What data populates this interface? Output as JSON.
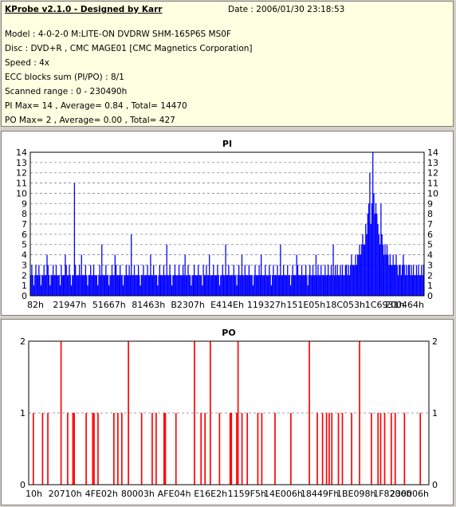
{
  "info": {
    "title": "KProbe v2.1.0 - Designed by Karr",
    "date": "Date : 2006/01/30 23:18:53",
    "lines": [
      "Model : 4-0-2-0 M:LITE-ON DVDRW SHM-165P6S MS0F",
      "Disc : DVD+R , CMC MAGE01 [CMC Magnetics Corporation]",
      "Speed : 4x",
      "ECC blocks sum (PI/PO) : 8/1",
      "Scanned range : 0 - 230490h",
      "PI Max= 14 , Average= 0.84 , Total= 14470",
      "PO Max= 2 , Average= 0.00 , Total= 427"
    ]
  },
  "chart_data": [
    {
      "type": "bar",
      "title": "PI",
      "color": "#0000ff",
      "ylim": [
        0,
        14
      ],
      "yticks": [
        0,
        1,
        2,
        3,
        4,
        5,
        6,
        7,
        8,
        9,
        10,
        11,
        12,
        13,
        14
      ],
      "xlim": [
        0,
        230490
      ],
      "xtick_labels": [
        "82h",
        "21947h",
        "51667h",
        "81463h",
        "B2307h",
        "E414Eh",
        "119327h",
        "151E05h",
        "18C053h",
        "1C6931h",
        "200464h"
      ],
      "grid": "dashed",
      "values": [
        2,
        3,
        2,
        1,
        2,
        3,
        2,
        2,
        3,
        2,
        1,
        2,
        2,
        3,
        2,
        2,
        4,
        3,
        2,
        1,
        2,
        2,
        3,
        2,
        2,
        3,
        2,
        2,
        2,
        1,
        3,
        2,
        2,
        2,
        4,
        3,
        2,
        2,
        3,
        2,
        1,
        2,
        2,
        11,
        3,
        2,
        2,
        2,
        3,
        2,
        4,
        2,
        2,
        2,
        3,
        2,
        1,
        2,
        2,
        3,
        2,
        2,
        3,
        2,
        2,
        2,
        1,
        2,
        3,
        2,
        5,
        2,
        2,
        2,
        3,
        2,
        2,
        1,
        2,
        2,
        3,
        2,
        2,
        4,
        3,
        2,
        2,
        2,
        3,
        2,
        2,
        1,
        2,
        2,
        3,
        2,
        2,
        3,
        2,
        6,
        2,
        2,
        3,
        2,
        2,
        2,
        3,
        2,
        1,
        2,
        2,
        3,
        2,
        2,
        2,
        3,
        2,
        2,
        4,
        2,
        2,
        3,
        2,
        2,
        2,
        1,
        2,
        3,
        2,
        2,
        2,
        3,
        2,
        2,
        5,
        2,
        2,
        3,
        2,
        1,
        2,
        2,
        3,
        2,
        2,
        2,
        3,
        2,
        2,
        2,
        3,
        2,
        4,
        2,
        2,
        3,
        2,
        2,
        1,
        2,
        2,
        3,
        2,
        2,
        2,
        3,
        2,
        2,
        2,
        1,
        3,
        2,
        2,
        3,
        2,
        2,
        4,
        2,
        2,
        2,
        3,
        2,
        2,
        2,
        3,
        2,
        1,
        2,
        2,
        3,
        2,
        2,
        5,
        2,
        2,
        3,
        2,
        2,
        2,
        2,
        3,
        2,
        2,
        1,
        2,
        3,
        2,
        2,
        4,
        2,
        2,
        3,
        2,
        2,
        2,
        3,
        2,
        2,
        2,
        1,
        2,
        3,
        2,
        2,
        2,
        3,
        2,
        4,
        2,
        2,
        2,
        3,
        2,
        2,
        2,
        3,
        2,
        1,
        2,
        3,
        2,
        2,
        2,
        3,
        2,
        2,
        5,
        2,
        2,
        3,
        2,
        2,
        2,
        3,
        2,
        2,
        1,
        2,
        3,
        2,
        2,
        2,
        4,
        3,
        2,
        2,
        2,
        3,
        2,
        2,
        2,
        3,
        2,
        1,
        2,
        3,
        2,
        2,
        3,
        2,
        2,
        4,
        2,
        3,
        2,
        2,
        3,
        2,
        2,
        2,
        3,
        2,
        2,
        3,
        2,
        2,
        3,
        2,
        5,
        2,
        3,
        2,
        3,
        2,
        2,
        3,
        2,
        3,
        2,
        2,
        3,
        3,
        2,
        3,
        2,
        3,
        4,
        3,
        3,
        3,
        4,
        3,
        4,
        4,
        5,
        4,
        5,
        6,
        5,
        5,
        7,
        6,
        8,
        9,
        12,
        7,
        9,
        14,
        10,
        8,
        9,
        8,
        7,
        6,
        5,
        9,
        6,
        5,
        4,
        5,
        4,
        5,
        4,
        3,
        4,
        3,
        3,
        4,
        3,
        3,
        4,
        3,
        2,
        3,
        3,
        2,
        3,
        4,
        3,
        2,
        3,
        2,
        3,
        3,
        2,
        3,
        2,
        3,
        2,
        2,
        3,
        2,
        3,
        2,
        2,
        3,
        2,
        3
      ]
    },
    {
      "type": "bar",
      "title": "PO",
      "color": "#ff0000",
      "ylim": [
        0,
        2
      ],
      "yticks": [
        0,
        1,
        2
      ],
      "xlim": [
        0,
        230490
      ],
      "xtick_labels": [
        "10h",
        "20710h",
        "4FE02h",
        "80003h",
        "AFE04h",
        "E16E2h",
        "1159F5h",
        "14E006h",
        "18449Fh",
        "1BE098h",
        "1F8206h",
        "230006h"
      ],
      "grid": "dashed",
      "values": [
        0,
        0,
        0,
        1,
        0,
        0,
        0,
        0,
        0,
        0,
        1,
        0,
        0,
        0,
        1,
        0,
        0,
        0,
        0,
        0,
        0,
        0,
        0,
        0,
        2,
        0,
        0,
        0,
        0,
        1,
        0,
        0,
        0,
        1,
        1,
        0,
        0,
        0,
        0,
        0,
        0,
        0,
        0,
        1,
        0,
        0,
        0,
        0,
        1,
        1,
        0,
        0,
        1,
        0,
        0,
        0,
        0,
        0,
        0,
        0,
        0,
        0,
        0,
        0,
        1,
        0,
        0,
        1,
        0,
        0,
        1,
        0,
        0,
        0,
        0,
        2,
        0,
        0,
        0,
        0,
        0,
        0,
        0,
        0,
        0,
        1,
        0,
        0,
        0,
        0,
        0,
        0,
        0,
        1,
        0,
        0,
        1,
        0,
        0,
        0,
        0,
        0,
        1,
        1,
        0,
        0,
        0,
        0,
        0,
        0,
        0,
        1,
        0,
        0,
        0,
        0,
        0,
        0,
        0,
        0,
        0,
        0,
        0,
        0,
        0,
        2,
        0,
        0,
        0,
        0,
        1,
        0,
        0,
        1,
        0,
        0,
        0,
        2,
        0,
        0,
        0,
        0,
        0,
        0,
        1,
        0,
        0,
        0,
        0,
        0,
        0,
        0,
        1,
        1,
        0,
        0,
        0,
        1,
        2,
        0,
        0,
        1,
        0,
        0,
        0,
        1,
        0,
        0,
        0,
        0,
        0,
        0,
        0,
        1,
        0,
        0,
        1,
        0,
        0,
        0,
        0,
        0,
        0,
        0,
        0,
        0,
        1,
        0,
        0,
        0,
        0,
        0,
        0,
        0,
        0,
        0,
        0,
        0,
        1,
        0,
        0,
        0,
        0,
        0,
        0,
        0,
        0,
        0,
        0,
        0,
        0,
        0,
        2,
        0,
        0,
        0,
        0,
        0,
        1,
        0,
        0,
        0,
        1,
        0,
        0,
        1,
        0,
        1,
        0,
        1,
        0,
        0,
        0,
        0,
        1,
        0,
        0,
        1,
        0,
        0,
        0,
        0,
        0,
        0,
        1,
        0,
        0,
        0,
        0,
        0,
        2,
        0,
        0,
        0,
        0,
        0,
        0,
        0,
        0,
        1,
        0,
        0,
        0,
        0,
        1,
        0,
        1,
        0,
        0,
        1,
        0,
        0,
        0,
        0,
        1,
        0,
        0,
        1,
        0,
        0,
        0,
        0,
        0,
        0,
        1,
        0,
        0,
        0,
        0,
        0,
        0,
        0,
        0,
        0,
        0,
        0,
        1,
        0,
        0,
        0,
        0,
        0,
        0
      ]
    }
  ]
}
